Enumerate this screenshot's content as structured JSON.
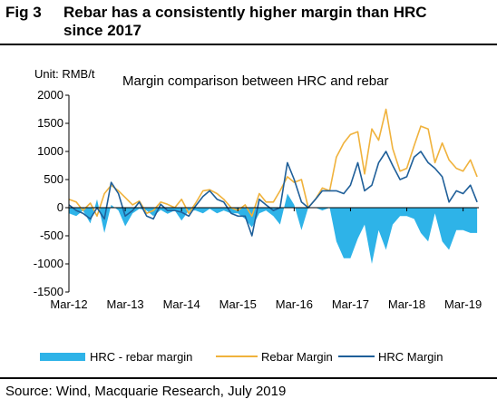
{
  "figure": {
    "number": "Fig 3",
    "title": "Rebar has a consistently higher margin than HRC\nsince 2017",
    "source": "Source: Wind, Macquarie Research, July 2019"
  },
  "chart_data": {
    "type": "line",
    "title": "Margin comparison between HRC and rebar",
    "unit_label": "Unit: RMB/t",
    "xlabel": "",
    "ylabel": "",
    "ylim": [
      -1500,
      2000
    ],
    "yticks": [
      -1500,
      -1000,
      -500,
      0,
      500,
      1000,
      1500,
      2000
    ],
    "ytick_labels": [
      "-1500",
      "-1000",
      "-500",
      "0",
      "500",
      "1000",
      "1500",
      "2000"
    ],
    "xlim": [
      2012.17,
      2019.45
    ],
    "xticks": [
      2012.17,
      2013.17,
      2014.17,
      2015.17,
      2016.17,
      2017.17,
      2018.17,
      2019.17
    ],
    "xtick_labels": [
      "Mar-12",
      "Mar-13",
      "Mar-14",
      "Mar-15",
      "Mar-16",
      "Mar-17",
      "Mar-18",
      "Mar-19"
    ],
    "grid": false,
    "legend_position": "bottom",
    "legend": [
      "HRC - rebar margin",
      "Rebar Margin",
      "HRC Margin"
    ],
    "colors": {
      "hrc_rebar_area": "#2eb3e8",
      "rebar": "#f0b23c",
      "hrc": "#1f5f99"
    },
    "x": [
      2012.17,
      2012.3,
      2012.42,
      2012.55,
      2012.67,
      2012.8,
      2012.92,
      2013.05,
      2013.17,
      2013.3,
      2013.42,
      2013.55,
      2013.67,
      2013.8,
      2013.92,
      2014.05,
      2014.17,
      2014.3,
      2014.42,
      2014.55,
      2014.67,
      2014.8,
      2014.92,
      2015.05,
      2015.17,
      2015.3,
      2015.42,
      2015.55,
      2015.67,
      2015.8,
      2015.92,
      2016.05,
      2016.17,
      2016.3,
      2016.42,
      2016.55,
      2016.67,
      2016.8,
      2016.92,
      2017.05,
      2017.17,
      2017.3,
      2017.42,
      2017.55,
      2017.67,
      2017.8,
      2017.92,
      2018.05,
      2018.17,
      2018.3,
      2018.42,
      2018.55,
      2018.67,
      2018.8,
      2018.92,
      2019.05,
      2019.17,
      2019.3,
      2019.42
    ],
    "series": [
      {
        "name": "Rebar Margin",
        "values": [
          150,
          100,
          -50,
          80,
          -150,
          250,
          400,
          300,
          180,
          50,
          120,
          -100,
          -50,
          100,
          60,
          0,
          150,
          -100,
          80,
          300,
          320,
          250,
          150,
          0,
          -50,
          50,
          -150,
          250,
          100,
          100,
          300,
          550,
          450,
          500,
          0,
          150,
          350,
          300,
          900,
          1150,
          1300,
          1350,
          600,
          1400,
          1200,
          1750,
          1050,
          650,
          700,
          1100,
          1450,
          1400,
          800,
          1150,
          850,
          700,
          650,
          850,
          550
        ]
      },
      {
        "name": "HRC Margin",
        "values": [
          50,
          -50,
          -100,
          -200,
          0,
          -200,
          450,
          250,
          -150,
          -50,
          100,
          -150,
          -200,
          60,
          -50,
          -50,
          -80,
          -150,
          30,
          200,
          300,
          150,
          100,
          -100,
          -150,
          -150,
          -500,
          150,
          50,
          -50,
          0,
          800,
          500,
          100,
          0,
          150,
          300,
          300,
          300,
          250,
          400,
          800,
          300,
          400,
          800,
          1000,
          750,
          500,
          550,
          900,
          1000,
          800,
          700,
          550,
          100,
          300,
          250,
          400,
          100
        ]
      },
      {
        "name": "HRC - rebar margin",
        "values": [
          -100,
          -150,
          -50,
          -280,
          150,
          -450,
          50,
          -50,
          -330,
          -100,
          -20,
          -50,
          -150,
          -40,
          -110,
          -50,
          -230,
          -50,
          -50,
          -100,
          -20,
          -100,
          -50,
          -100,
          -100,
          -200,
          -350,
          -100,
          -50,
          -150,
          -300,
          250,
          50,
          -400,
          0,
          0,
          -50,
          0,
          -600,
          -900,
          -900,
          -550,
          -300,
          -1000,
          -400,
          -750,
          -300,
          -150,
          -150,
          -200,
          -450,
          -600,
          -100,
          -600,
          -750,
          -400,
          -400,
          -450,
          -450
        ]
      }
    ]
  }
}
